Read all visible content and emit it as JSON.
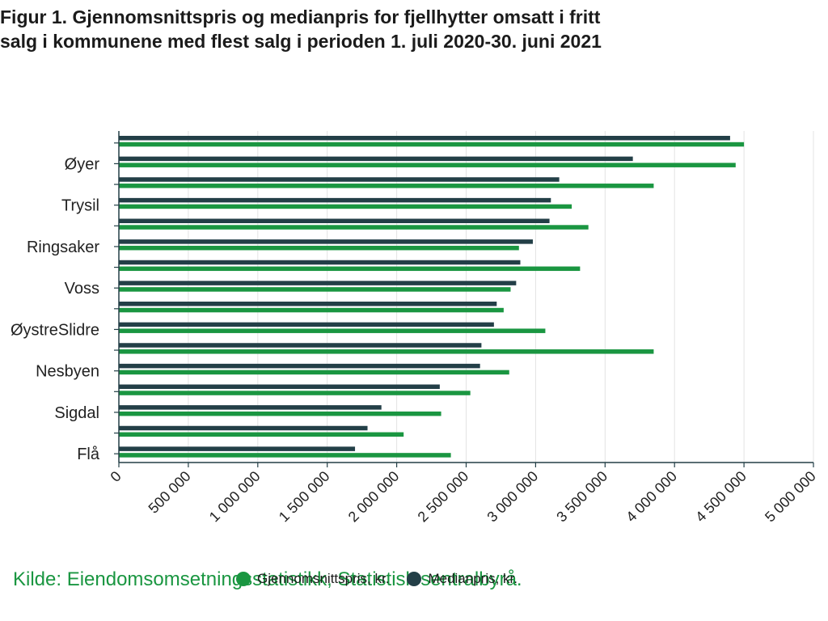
{
  "chart_data": {
    "type": "bar",
    "orientation": "horizontal",
    "title": "Figur 1. Gjennomsnittspris og medianpris for fjellhytter omsatt i fritt salg i kommunene med flest salg i perioden 1. juli 2020-30. juni 2021",
    "categories": [
      "",
      "Øyer",
      "",
      "Trysil",
      "",
      "Ringsaker",
      "",
      "Voss",
      "",
      "ØystreSlidre",
      "",
      "Nesbyen",
      "",
      "Sigdal",
      "",
      "Flå"
    ],
    "series": [
      {
        "name": "Medianpris, kr.",
        "color": "#233f47",
        "values": [
          4400000,
          3700000,
          3170000,
          3110000,
          3100000,
          2980000,
          2890000,
          2860000,
          2720000,
          2700000,
          2610000,
          2600000,
          2310000,
          1890000,
          1790000,
          1700000
        ]
      },
      {
        "name": "Gjennomsnittspris, kr.",
        "color": "#1a9641",
        "values": [
          4500000,
          4440000,
          3850000,
          3260000,
          3380000,
          2880000,
          3320000,
          2820000,
          2770000,
          3070000,
          3850000,
          2810000,
          2530000,
          2320000,
          2050000,
          2390000
        ]
      }
    ],
    "xlim": [
      0,
      5000000
    ],
    "xticks": [
      "0",
      "500 000",
      "1 000 000",
      "1 500 000",
      "2 000 000",
      "2 500 000",
      "3 000 000",
      "3 500 000",
      "4 000 000",
      "4 500 000",
      "5 000 000"
    ],
    "grid": true,
    "legend_position": "bottom"
  },
  "source": "Kilde: Eiendomsomsetningsstatistikk, Statistisk sentralbyrå.",
  "legend": [
    {
      "label": "Gjennomsnittspris, kr.",
      "color": "#1a9641"
    },
    {
      "label": "Medianpris, kr.",
      "color": "#233f47"
    }
  ]
}
